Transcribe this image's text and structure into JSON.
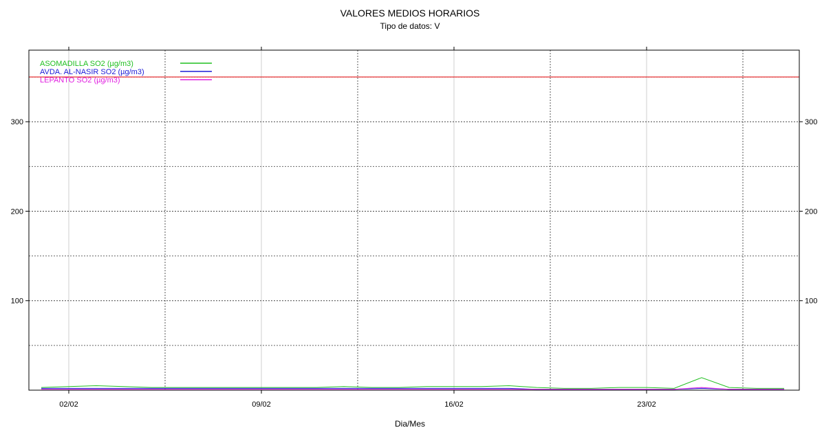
{
  "chart_data": {
    "type": "line",
    "title": "VALORES MEDIOS HORARIOS",
    "subtitle": "Tipo de datos: V",
    "xlabel": "Dia/Mes",
    "ylabel": "",
    "x_ticks": [
      "02/02",
      "09/02",
      "16/02",
      "23/02"
    ],
    "y_ticks": [
      100,
      200,
      300
    ],
    "xlim": [
      "01/02",
      "28/02"
    ],
    "ylim": [
      0,
      380
    ],
    "grid": true,
    "legend_position": "top-left",
    "threshold": {
      "value": 350,
      "color": "#e41a1c"
    },
    "series": [
      {
        "name": "ASOMADILLA SO2 (µg/m3)",
        "color": "#1fbf1f",
        "x": [
          "01/02",
          "02/02",
          "03/02",
          "04/02",
          "05/02",
          "06/02",
          "07/02",
          "08/02",
          "09/02",
          "10/02",
          "11/02",
          "12/02",
          "13/02",
          "14/02",
          "15/02",
          "16/02",
          "17/02",
          "18/02",
          "19/02",
          "20/02",
          "21/02",
          "22/02",
          "23/02",
          "24/02",
          "25/02",
          "26/02",
          "27/02",
          "28/02"
        ],
        "values": [
          3,
          4,
          5,
          4,
          3,
          3,
          3,
          3,
          3,
          3,
          3,
          4,
          3,
          3,
          4,
          4,
          4,
          5,
          3,
          2,
          2,
          3,
          3,
          2,
          14,
          3,
          2,
          2
        ]
      },
      {
        "name": "AVDA. AL-NASIR SO2 (µg/m3)",
        "color": "#1a1ad6",
        "x": [
          "01/02",
          "02/02",
          "03/02",
          "04/02",
          "05/02",
          "06/02",
          "07/02",
          "08/02",
          "09/02",
          "10/02",
          "11/02",
          "12/02",
          "13/02",
          "14/02",
          "15/02",
          "16/02",
          "17/02",
          "18/02",
          "19/02",
          "20/02",
          "21/02",
          "22/02",
          "23/02",
          "24/02",
          "25/02",
          "26/02",
          "27/02",
          "28/02"
        ],
        "values": [
          2,
          2,
          2,
          2,
          2,
          2,
          2,
          2,
          2,
          2,
          2,
          2,
          2,
          2,
          2,
          2,
          2,
          2,
          1,
          1,
          1,
          1,
          1,
          1,
          2,
          1,
          1,
          1
        ]
      },
      {
        "name": "LEPANTO SO2 (µg/m3)",
        "color": "#e01ee0",
        "x": [
          "01/02",
          "02/02",
          "03/02",
          "04/02",
          "05/02",
          "06/02",
          "07/02",
          "08/02",
          "09/02",
          "10/02",
          "11/02",
          "12/02",
          "13/02",
          "14/02",
          "15/02",
          "16/02",
          "17/02",
          "18/02",
          "19/02",
          "20/02",
          "21/02",
          "22/02",
          "23/02",
          "24/02",
          "25/02",
          "26/02",
          "27/02",
          "28/02"
        ],
        "values": [
          1,
          1,
          1,
          1,
          1,
          1,
          1,
          1,
          1,
          1,
          1,
          1,
          1,
          1,
          1,
          1,
          1,
          1,
          1,
          1,
          1,
          1,
          1,
          1,
          3,
          1,
          1,
          1
        ]
      }
    ]
  }
}
